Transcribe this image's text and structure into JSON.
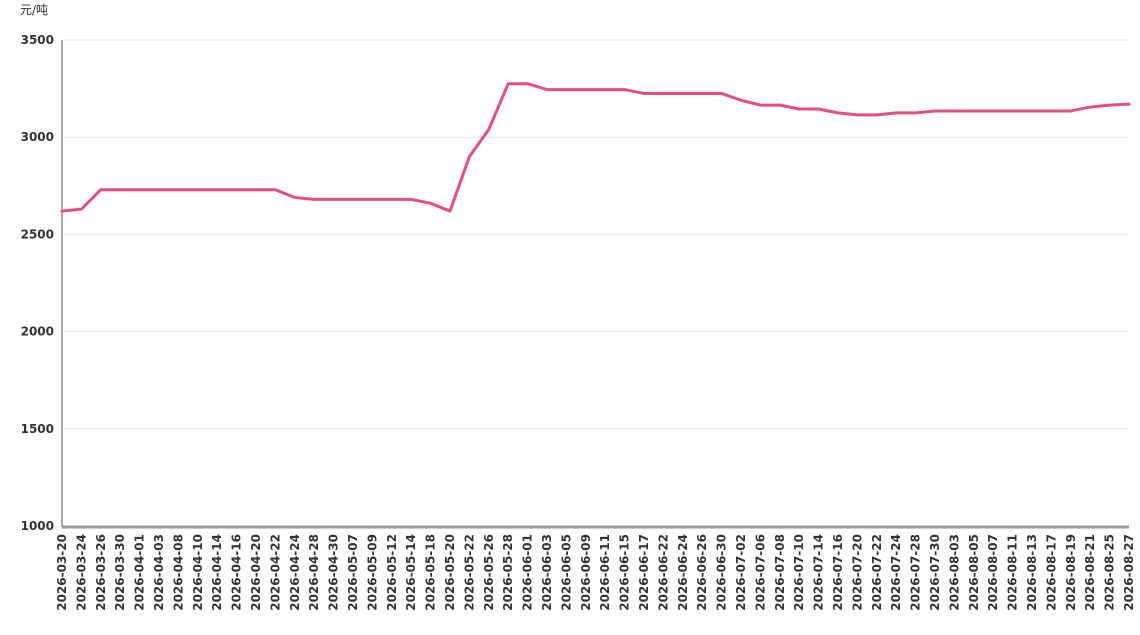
{
  "chart_data": {
    "type": "line",
    "y_label": "元/吨",
    "categories": [
      "2026-03-20",
      "2026-03-24",
      "2026-03-26",
      "2026-03-30",
      "2026-04-01",
      "2026-04-03",
      "2026-04-08",
      "2026-04-10",
      "2026-04-14",
      "2026-04-16",
      "2026-04-20",
      "2026-04-22",
      "2026-04-24",
      "2026-04-28",
      "2026-04-30",
      "2026-05-07",
      "2026-05-09",
      "2026-05-12",
      "2026-05-14",
      "2026-05-18",
      "2026-05-20",
      "2026-05-22",
      "2026-05-26",
      "2026-05-28",
      "2026-06-01",
      "2026-06-03",
      "2026-06-05",
      "2026-06-09",
      "2026-06-11",
      "2026-06-15",
      "2026-06-17",
      "2026-06-22",
      "2026-06-24",
      "2026-06-26",
      "2026-06-30",
      "2026-07-02",
      "2026-07-06",
      "2026-07-08",
      "2026-07-10",
      "2026-07-14",
      "2026-07-16",
      "2026-07-20",
      "2026-07-22",
      "2026-07-24",
      "2026-07-28",
      "2026-07-30",
      "2026-08-03",
      "2026-08-05",
      "2026-08-07",
      "2026-08-11",
      "2026-08-13",
      "2026-08-17",
      "2026-08-19",
      "2026-08-21",
      "2026-08-25",
      "2026-08-27"
    ],
    "values": [
      2620,
      2630,
      2730,
      2730,
      2730,
      2730,
      2730,
      2730,
      2730,
      2730,
      2730,
      2730,
      2690,
      2680,
      2680,
      2680,
      2680,
      2680,
      2680,
      2660,
      2620,
      2900,
      3040,
      3275,
      3275,
      3245,
      3245,
      3245,
      3245,
      3245,
      3225,
      3225,
      3225,
      3225,
      3225,
      3190,
      3165,
      3165,
      3145,
      3145,
      3125,
      3115,
      3115,
      3125,
      3125,
      3135,
      3135,
      3135,
      3135,
      3135,
      3135,
      3135,
      3135,
      3155,
      3165,
      3170
    ],
    "color": "#e5507a",
    "ylim": [
      1000,
      3500
    ],
    "yticks": [
      1000,
      1500,
      2000,
      2500,
      3000,
      3500
    ],
    "grid": true
  }
}
